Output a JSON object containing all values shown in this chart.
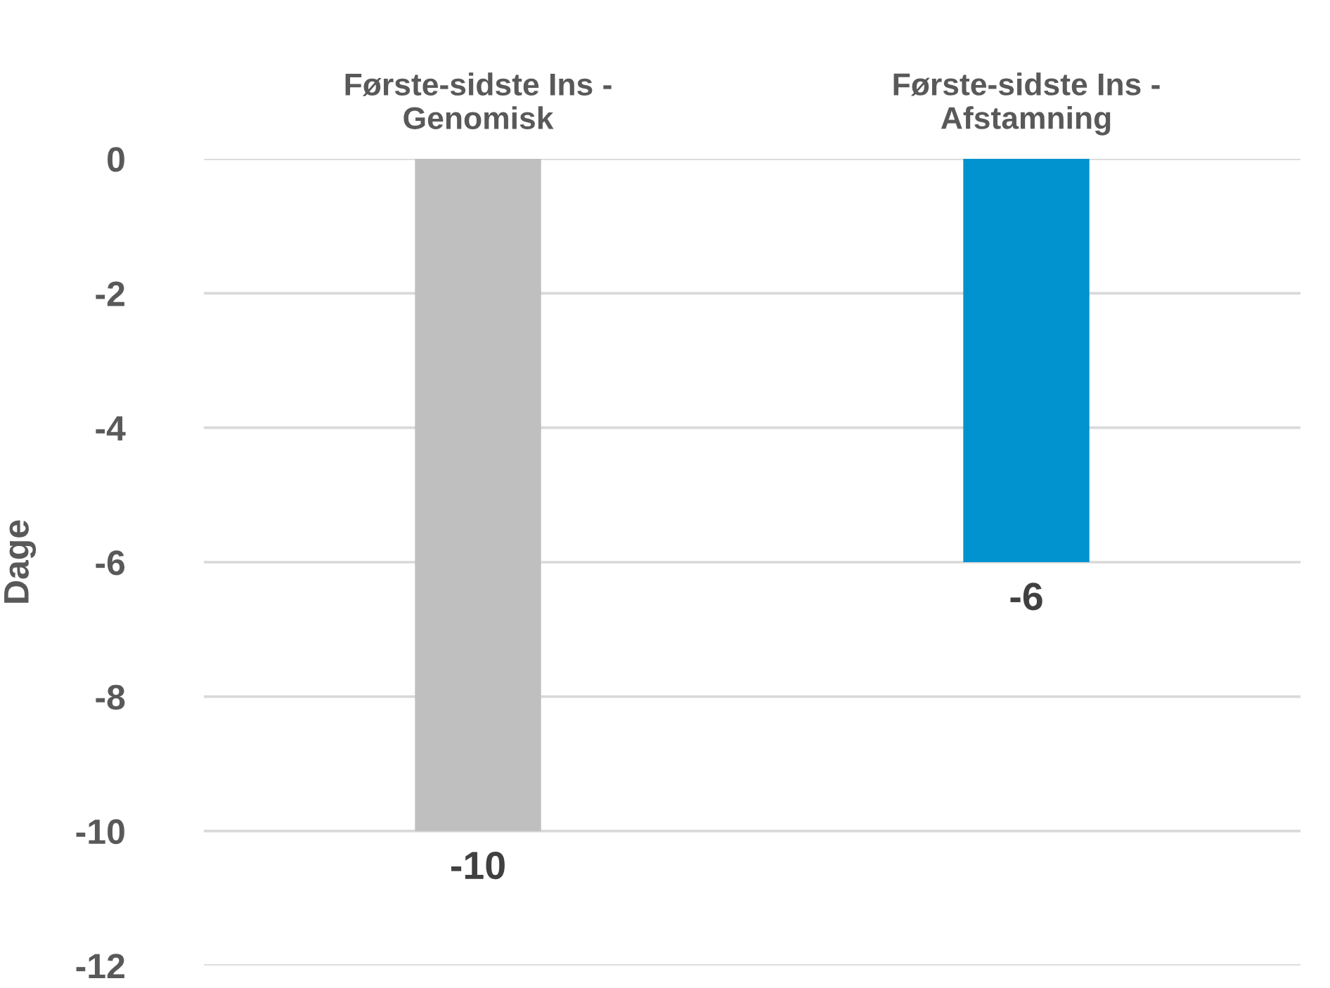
{
  "chart_data": {
    "type": "bar",
    "ylabel": "Dage",
    "categories": [
      "Første-sidste Ins -\nGenomisk",
      "Første-sidste Ins -\nAfstamning"
    ],
    "values": [
      -10,
      -6
    ],
    "colors": [
      "#bfbfbf",
      "#0093d0"
    ],
    "ylim": [
      -12,
      0
    ],
    "yticks": [
      -12,
      -10,
      -8,
      -6,
      -4,
      -2,
      0
    ],
    "grid": "y",
    "data_labels": true
  }
}
